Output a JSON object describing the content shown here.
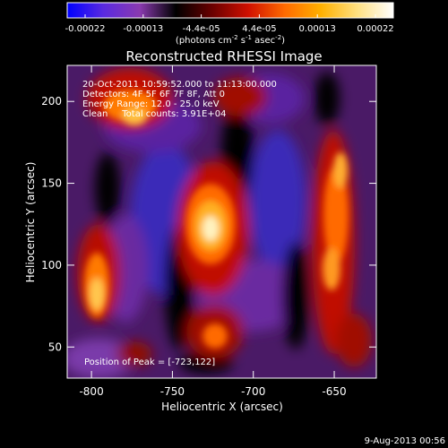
{
  "colorbar": {
    "ticks": [
      "-0.00022",
      "-0.00013",
      "-4.4e-05",
      "4.4e-05",
      "0.00013",
      "0.00022"
    ],
    "units_main": "(photons cm",
    "units_sup1": "-2",
    "units_mid": " s",
    "units_sup2": "-1",
    "units_end": " asec",
    "units_sup3": "-2",
    "units_close": ")",
    "stops": [
      "#0000ff",
      "#5a2ae0",
      "#8a3ab0",
      "#000000",
      "#6a0000",
      "#d01000",
      "#ff6a00",
      "#ffb000",
      "#ffe080",
      "#ffffff"
    ]
  },
  "title": "Reconstructed RHESSI Image",
  "annotations": {
    "time_range": "20-Oct-2011 10:59:52.000 to 11:13:00.000",
    "detectors": "Detectors: 4F 5F 6F 7F 8F, Att 0",
    "energy": "Energy Range: 12.0 - 25.0 keV",
    "clean": "Clean     Total counts: 3.91E+04",
    "peak": "Position of Peak = [-723,122]"
  },
  "axes": {
    "xlabel": "Heliocentric X (arcsec)",
    "ylabel": "Heliocentric Y (arcsec)",
    "xticks": [
      {
        "value": -800,
        "label": "-800"
      },
      {
        "value": -750,
        "label": "-750"
      },
      {
        "value": -700,
        "label": "-700"
      },
      {
        "value": -650,
        "label": "-650"
      }
    ],
    "yticks": [
      {
        "value": 50,
        "label": "50"
      },
      {
        "value": 100,
        "label": "100"
      },
      {
        "value": 150,
        "label": "150"
      },
      {
        "value": 200,
        "label": "200"
      }
    ],
    "xlim": [
      -815,
      -624
    ],
    "ylim": [
      31,
      222
    ]
  },
  "footer": {
    "timestamp": "9-Aug-2013 00:56"
  }
}
